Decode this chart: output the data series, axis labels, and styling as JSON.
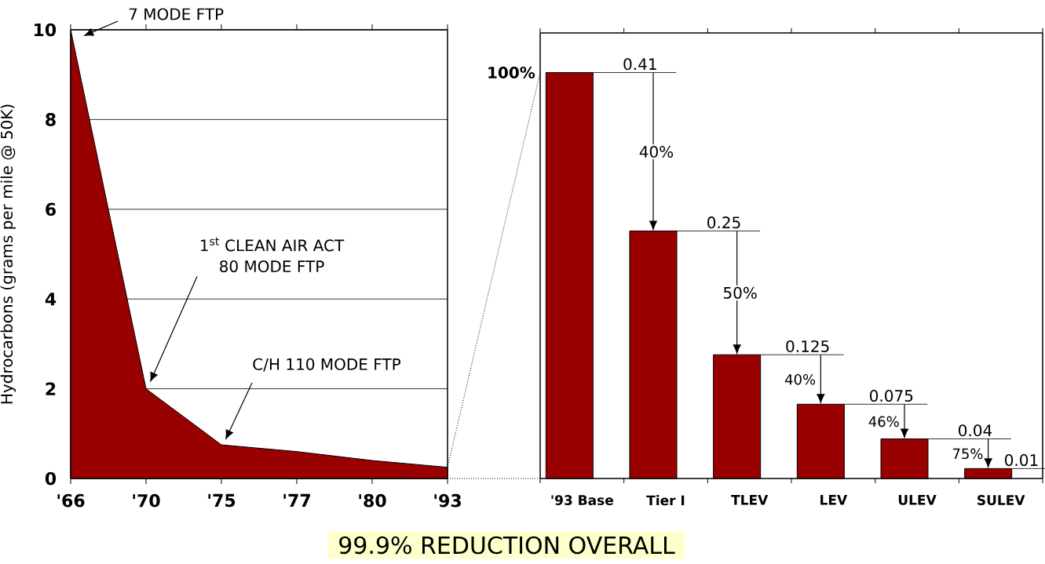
{
  "chart_data": [
    {
      "type": "area",
      "categories": [
        "'66",
        "'70",
        "'75",
        "'77",
        "'80",
        "'93"
      ],
      "values": [
        10,
        2,
        0.75,
        0.6,
        0.4,
        0.25
      ],
      "color": "#990000",
      "ylabel": "Hydrocarbons (grams per mile @ 50K)",
      "ylim": [
        0,
        10
      ],
      "yticks": [
        0,
        2,
        4,
        6,
        8,
        10
      ],
      "grid": "y",
      "annotations": [
        "7 MODE FTP",
        "1$^{st}$ CLEAN AIR ACT",
        "80 MODE FTP",
        "C/H 110 MODE FTP"
      ]
    },
    {
      "type": "bar",
      "categories": [
        "'93 Base",
        "Tier I",
        "TLEV",
        "LEV",
        "ULEV",
        "SULEV"
      ],
      "values": [
        0.41,
        0.25,
        0.125,
        0.075,
        0.04,
        0.01
      ],
      "color": "#990000",
      "ylim": [
        0,
        0.45
      ],
      "data_labels": true,
      "annotations": [
        "100%",
        "40%",
        "50%",
        "40%",
        "46%",
        "75%",
        "99.9% REDUCTION OVERALL"
      ]
    }
  ]
}
